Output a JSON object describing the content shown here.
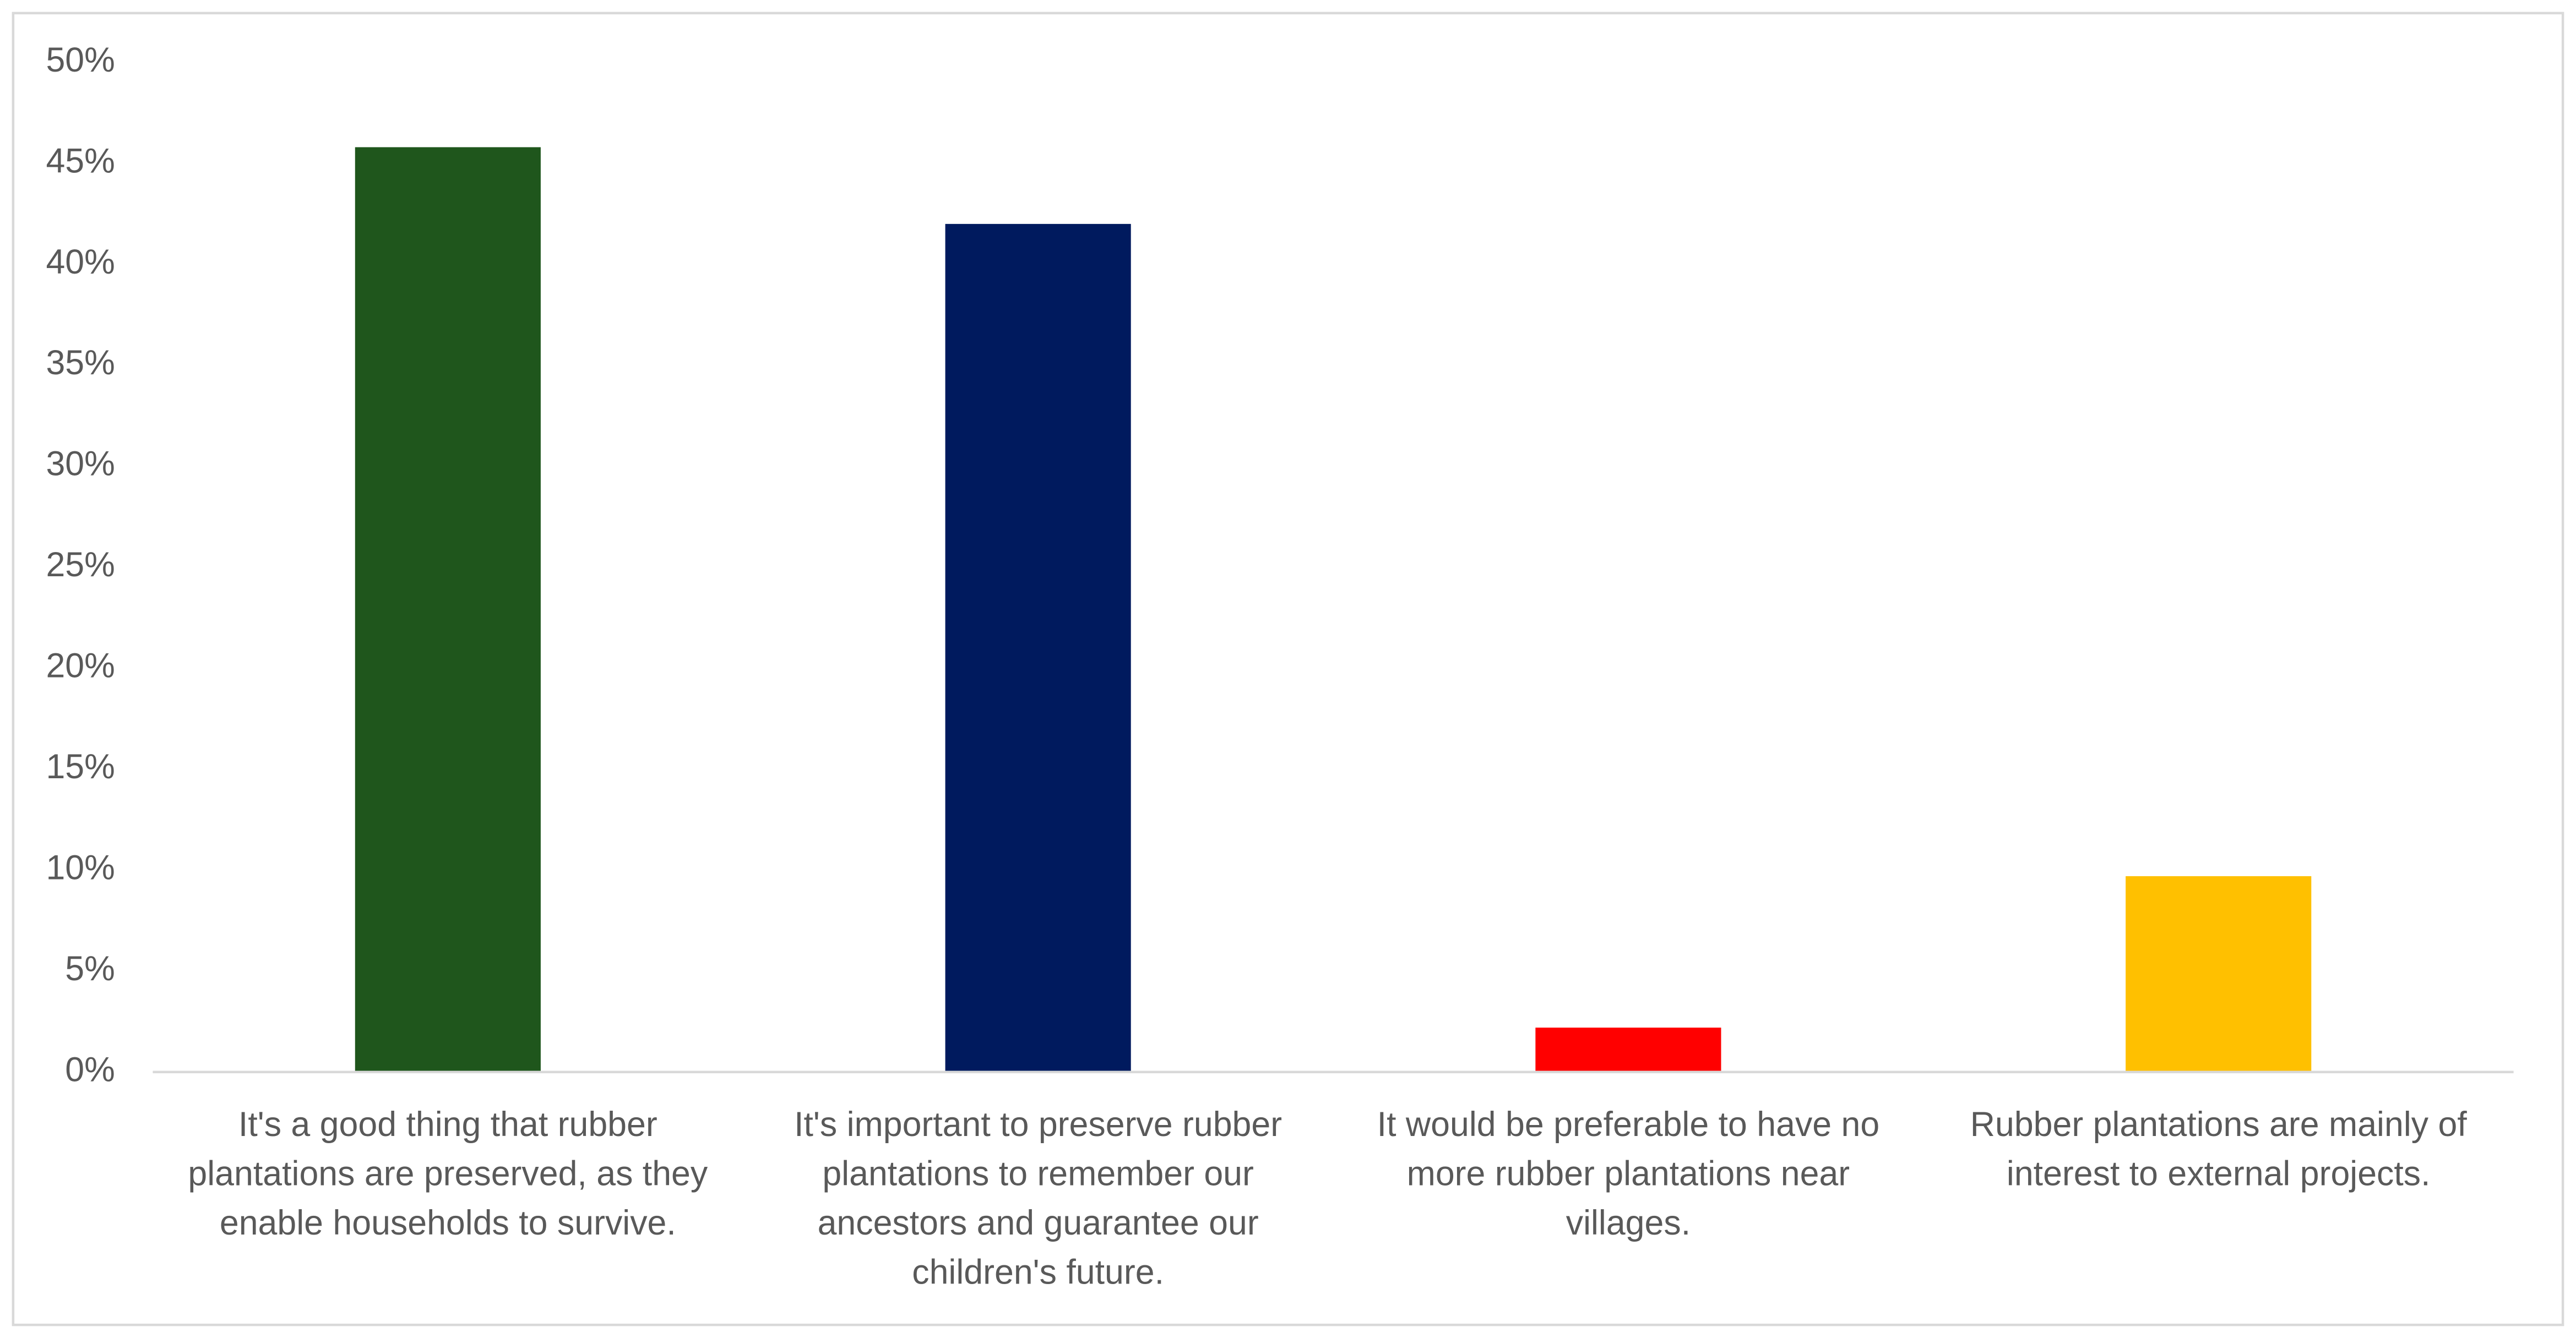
{
  "chart_data": {
    "type": "bar",
    "categories": [
      "It's a good thing that rubber plantations are preserved, as they enable households to survive.",
      "It's important to preserve rubber plantations to remember our ancestors and guarantee our children's future.",
      "It would be preferable to have no more rubber plantations near villages.",
      "Rubber plantations are mainly of interest to external projects."
    ],
    "values": [
      45.8,
      42.0,
      2.2,
      9.7
    ],
    "colors": [
      "#1f561c",
      "#001a5e",
      "#ff0000",
      "#ffc000"
    ],
    "ylim": [
      0,
      50
    ],
    "yticks": [
      {
        "value": 0,
        "label": "0%"
      },
      {
        "value": 5,
        "label": "5%"
      },
      {
        "value": 10,
        "label": "10%"
      },
      {
        "value": 15,
        "label": "15%"
      },
      {
        "value": 20,
        "label": "20%"
      },
      {
        "value": 25,
        "label": "25%"
      },
      {
        "value": 30,
        "label": "30%"
      },
      {
        "value": 35,
        "label": "35%"
      },
      {
        "value": 40,
        "label": "40%"
      },
      {
        "value": 45,
        "label": "45%"
      },
      {
        "value": 50,
        "label": "50%"
      }
    ],
    "grid": false
  }
}
